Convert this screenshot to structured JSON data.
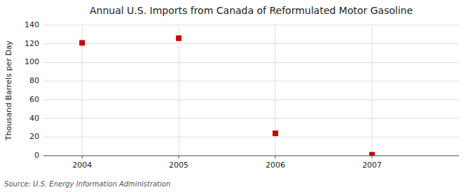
{
  "chart_data": {
    "type": "scatter",
    "title": "Annual U.S. Imports from Canada of Reformulated Motor Gasoline",
    "ylabel": "Thousand Barrels per Day",
    "annotations": [
      "Source: U.S. Energy Information Administration"
    ],
    "x": [
      2004,
      2005,
      2006,
      2007
    ],
    "values": [
      121,
      126,
      24,
      1
    ],
    "xlim": [
      2003.6,
      2007.9
    ],
    "ylim": [
      0,
      140
    ],
    "xticks": [
      2004,
      2005,
      2006,
      2007
    ],
    "yticks": [
      0,
      20,
      40,
      60,
      80,
      100,
      120,
      140
    ],
    "color": "#cc0000",
    "marker": "square",
    "grid": true
  }
}
